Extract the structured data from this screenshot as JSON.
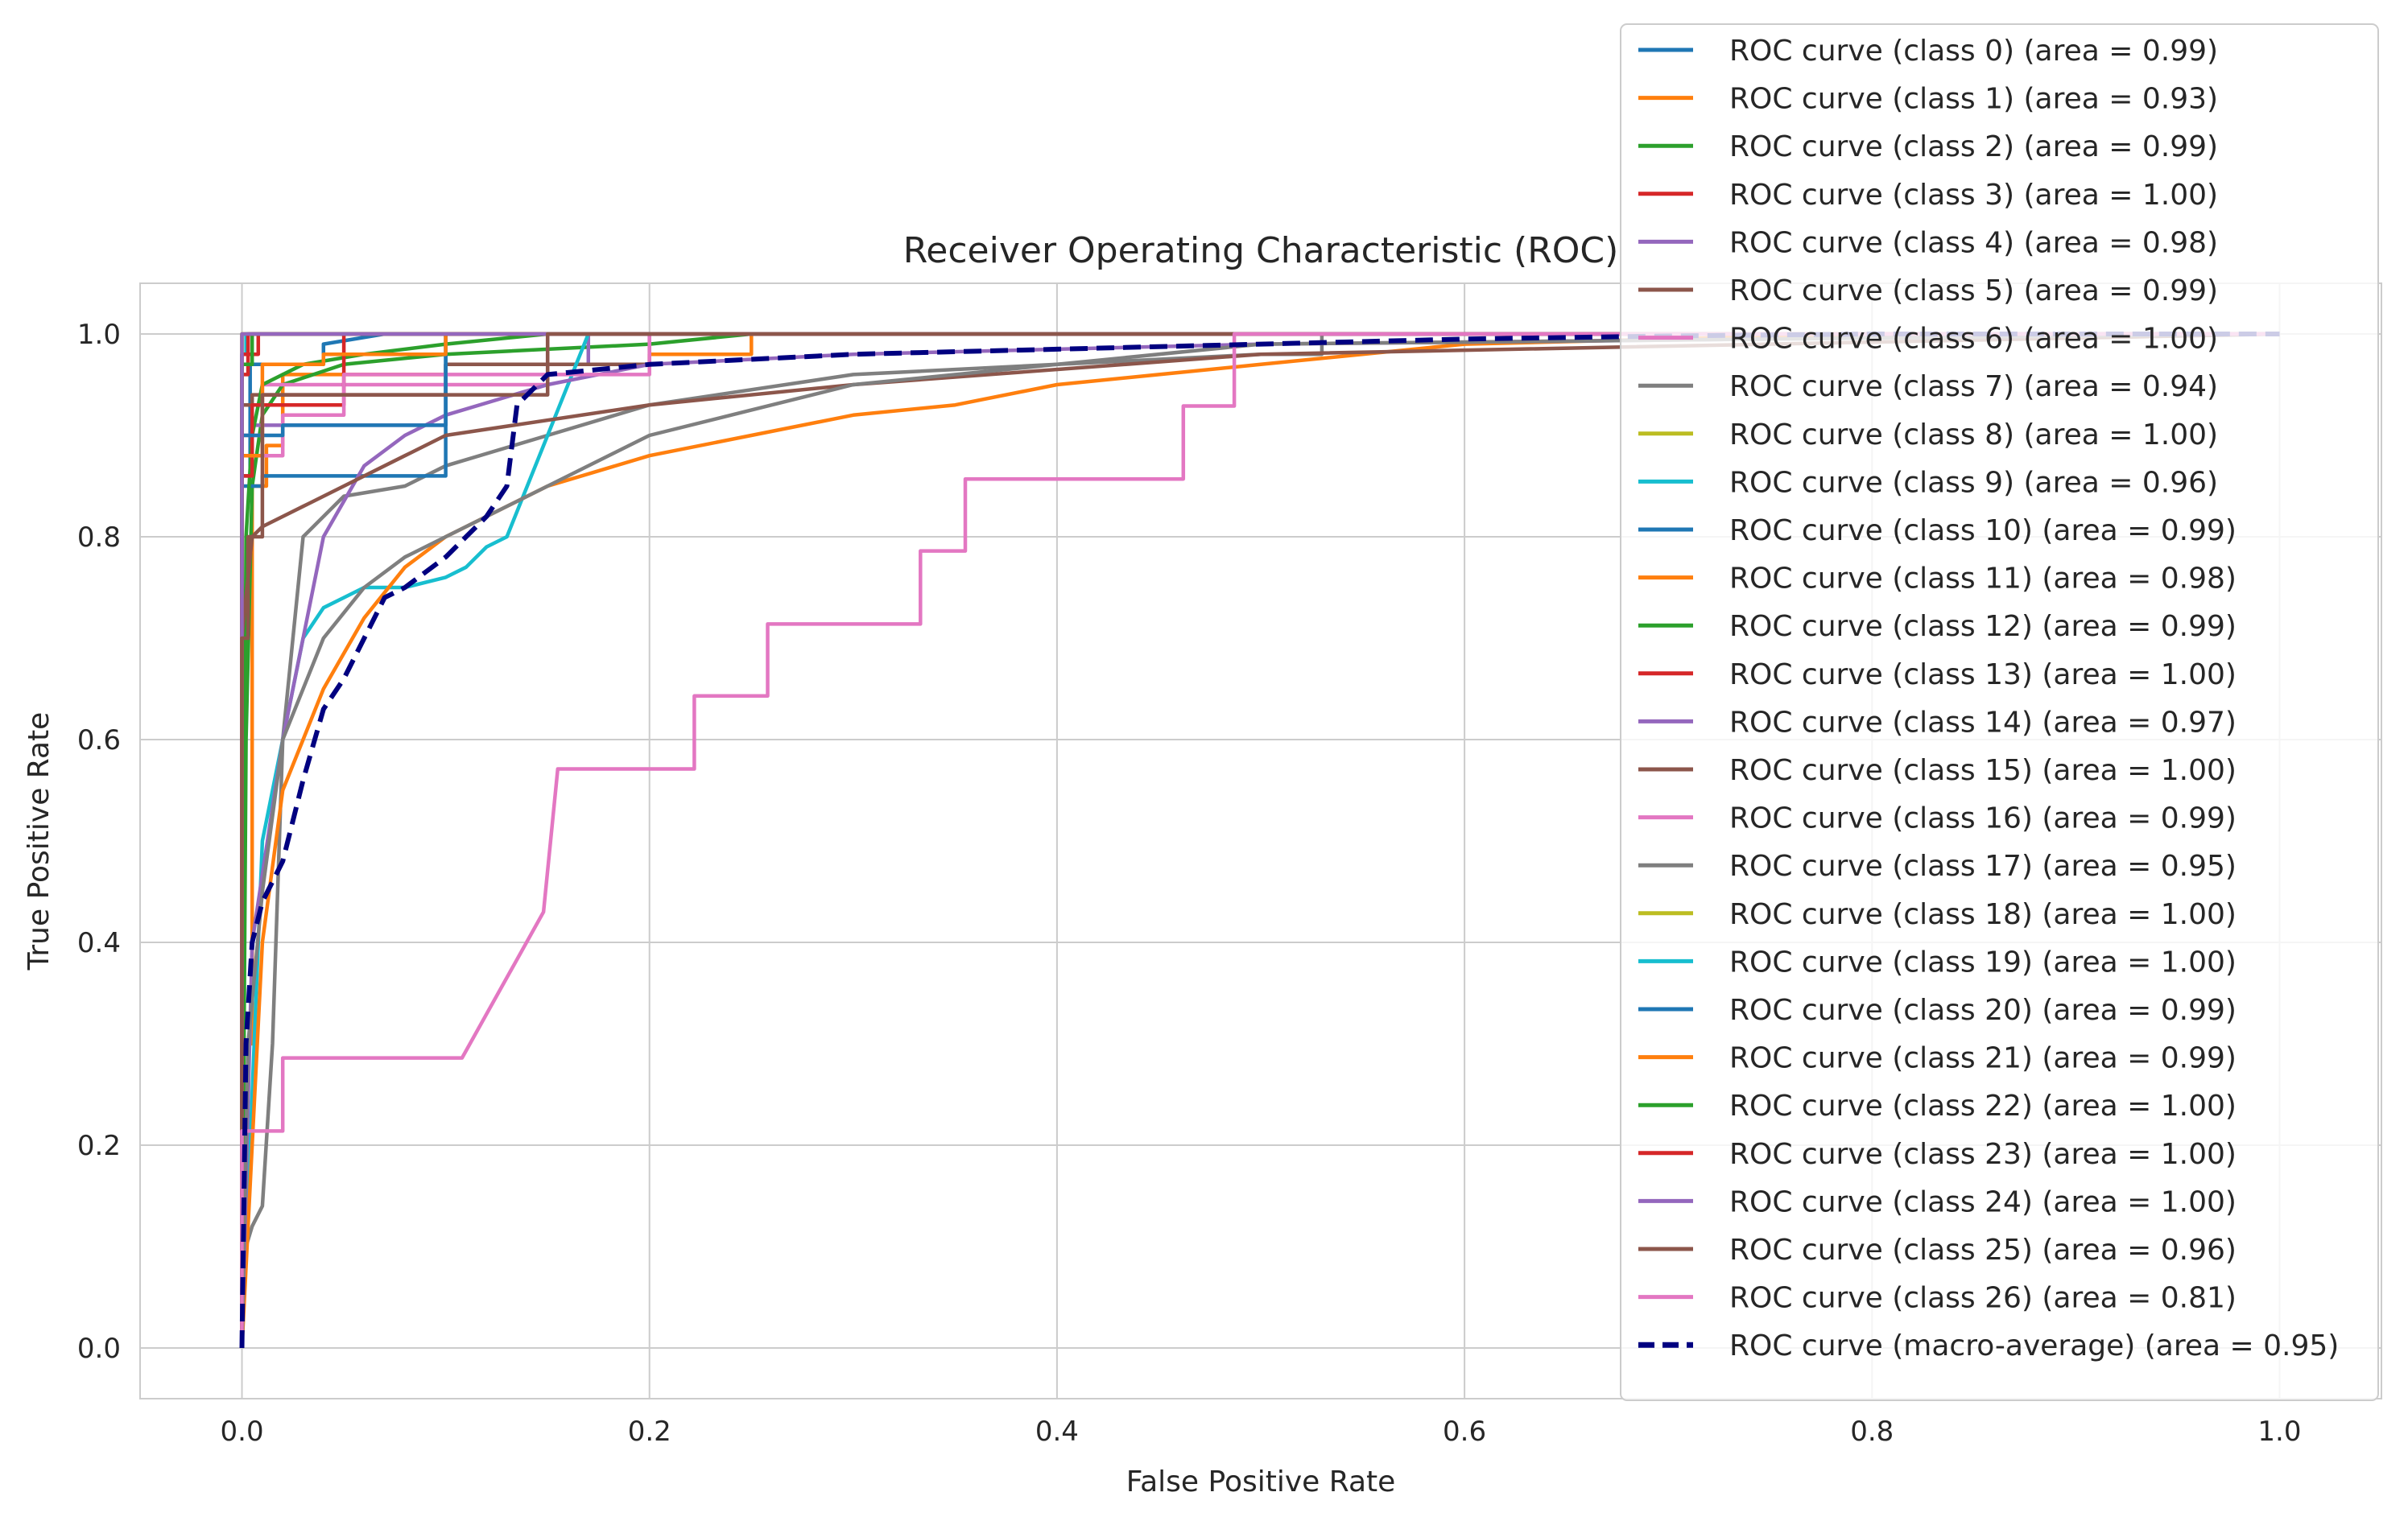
{
  "chart_data": {
    "type": "line",
    "title": "Receiver Operating Characteristic (ROC)",
    "xlabel": "False Positive Rate",
    "ylabel": "True Positive Rate",
    "xlim": [
      -0.05,
      1.05
    ],
    "ylim": [
      -0.05,
      1.05
    ],
    "xticks": [
      "0.0",
      "0.2",
      "0.4",
      "0.6",
      "0.8",
      "1.0"
    ],
    "yticks": [
      "0.0",
      "0.2",
      "0.4",
      "0.6",
      "0.8",
      "1.0"
    ],
    "grid": true,
    "legend_position": "upper-right",
    "series": [
      {
        "name": "ROC curve (class 0) (area = 0.99)",
        "color": "#1f77b4",
        "x": [
          0,
          0,
          0.004,
          0.004,
          0.04,
          0.04,
          0.07,
          1.0
        ],
        "y": [
          0,
          0.86,
          0.86,
          0.97,
          0.97,
          0.99,
          1.0,
          1.0
        ]
      },
      {
        "name": "ROC curve (class 1) (area = 0.93)",
        "color": "#ff7f0e",
        "x": [
          0,
          0,
          0.005,
          0.005,
          0.012,
          0.012,
          0.02,
          0.02,
          0.1,
          0.1,
          0.2,
          0.2,
          0.25,
          0.25,
          1.0
        ],
        "y": [
          0,
          0.3,
          0.3,
          0.85,
          0.85,
          0.89,
          0.89,
          0.96,
          0.96,
          0.97,
          0.97,
          0.98,
          0.98,
          1.0,
          1.0
        ]
      },
      {
        "name": "ROC curve (class 2) (area = 0.99)",
        "color": "#2ca02c",
        "x": [
          0,
          0.002,
          0.005,
          0.01,
          0.02,
          0.05,
          0.1,
          0.2,
          0.25,
          1.0
        ],
        "y": [
          0,
          0.6,
          0.85,
          0.92,
          0.95,
          0.97,
          0.98,
          0.99,
          1.0,
          1.0
        ]
      },
      {
        "name": "ROC curve (class 3) (area = 1.00)",
        "color": "#d62728",
        "x": [
          0,
          0,
          0.003,
          0.003,
          0.008,
          0.008,
          1.0
        ],
        "y": [
          0,
          0.96,
          0.96,
          0.98,
          0.98,
          1.0,
          1.0
        ]
      },
      {
        "name": "ROC curve (class 4) (area = 0.98)",
        "color": "#9467bd",
        "x": [
          0,
          0,
          0.005,
          0.005,
          0.1,
          0.1,
          0.17,
          0.17,
          1.0
        ],
        "y": [
          0,
          0.88,
          0.88,
          0.91,
          0.91,
          0.97,
          0.97,
          1.0,
          1.0
        ]
      },
      {
        "name": "ROC curve (class 5) (area = 0.99)",
        "color": "#8c564b",
        "x": [
          0,
          0,
          0.005,
          0.005,
          0.1,
          0.1,
          0.2,
          0.2,
          1.0
        ],
        "y": [
          0,
          0.93,
          0.93,
          0.94,
          0.94,
          0.97,
          0.97,
          1.0,
          1.0
        ]
      },
      {
        "name": "ROC curve (class 6) (area = 1.00)",
        "color": "#e377c2",
        "x": [
          0,
          0,
          0.01,
          0.01,
          0.15,
          0.15,
          1.0
        ],
        "y": [
          0,
          0.9,
          0.9,
          0.95,
          0.95,
          1.0,
          1.0
        ]
      },
      {
        "name": "ROC curve (class 7) (area = 0.94)",
        "color": "#7f7f7f",
        "x": [
          0,
          0.002,
          0.005,
          0.01,
          0.015,
          0.02,
          0.03,
          0.05,
          0.08,
          0.1,
          0.15,
          0.2,
          0.3,
          0.4,
          0.5,
          0.53,
          0.53,
          1.0
        ],
        "y": [
          0,
          0.1,
          0.12,
          0.14,
          0.3,
          0.6,
          0.8,
          0.84,
          0.85,
          0.87,
          0.9,
          0.93,
          0.96,
          0.97,
          0.98,
          0.98,
          1.0,
          1.0
        ]
      },
      {
        "name": "ROC curve (class 8) (area = 1.00)",
        "color": "#bcbd22",
        "x": [
          0,
          0,
          1.0
        ],
        "y": [
          0,
          1.0,
          1.0
        ]
      },
      {
        "name": "ROC curve (class 9) (area = 0.96)",
        "color": "#17becf",
        "x": [
          0,
          0.01,
          0.02,
          0.03,
          0.04,
          0.05,
          0.06,
          0.08,
          0.1,
          0.11,
          0.12,
          0.13,
          0.14,
          0.15,
          0.16,
          0.17,
          1.0
        ],
        "y": [
          0,
          0.5,
          0.6,
          0.7,
          0.73,
          0.74,
          0.75,
          0.75,
          0.76,
          0.77,
          0.79,
          0.8,
          0.85,
          0.9,
          0.95,
          1.0,
          1.0
        ]
      },
      {
        "name": "ROC curve (class 10) (area = 0.99)",
        "color": "#1f77b4",
        "x": [
          0,
          0,
          0.01,
          0.01,
          0.1,
          0.1,
          1.0
        ],
        "y": [
          0,
          0.85,
          0.85,
          0.86,
          0.86,
          1.0,
          1.0
        ]
      },
      {
        "name": "ROC curve (class 11) (area = 0.98)",
        "color": "#ff7f0e",
        "x": [
          0,
          0.01,
          0.02,
          0.04,
          0.06,
          0.08,
          0.1,
          0.15,
          0.2,
          0.25,
          0.3,
          0.35,
          0.4,
          0.45,
          0.5,
          0.6,
          0.8,
          1.0
        ],
        "y": [
          0,
          0.4,
          0.55,
          0.65,
          0.72,
          0.77,
          0.8,
          0.85,
          0.88,
          0.9,
          0.92,
          0.93,
          0.95,
          0.96,
          0.97,
          0.99,
          1.0,
          1.0
        ]
      },
      {
        "name": "ROC curve (class 12) (area = 0.99)",
        "color": "#2ca02c",
        "x": [
          0,
          0.002,
          0.005,
          0.01,
          0.03,
          0.06,
          0.1,
          0.15,
          1.0
        ],
        "y": [
          0,
          0.8,
          0.9,
          0.95,
          0.97,
          0.98,
          0.99,
          1.0,
          1.0
        ]
      },
      {
        "name": "ROC curve (class 13) (area = 1.00)",
        "color": "#d62728",
        "x": [
          0,
          0,
          0.005,
          0.005,
          0.05,
          0.05,
          1.0
        ],
        "y": [
          0,
          0.86,
          0.86,
          0.93,
          0.93,
          1.0,
          1.0
        ]
      },
      {
        "name": "ROC curve (class 14) (area = 0.97)",
        "color": "#9467bd",
        "x": [
          0,
          0.005,
          0.02,
          0.04,
          0.06,
          0.08,
          0.1,
          0.15,
          0.2,
          0.3,
          0.5,
          1.0
        ],
        "y": [
          0,
          0.4,
          0.6,
          0.8,
          0.87,
          0.9,
          0.92,
          0.95,
          0.97,
          0.98,
          0.99,
          1.0
        ]
      },
      {
        "name": "ROC curve (class 15) (area = 1.00)",
        "color": "#8c564b",
        "x": [
          0,
          0,
          0.005,
          0.01,
          0.03,
          0.05,
          0.08,
          0.1,
          0.2,
          0.3,
          0.5,
          1.0
        ],
        "y": [
          0,
          0.7,
          0.8,
          0.81,
          0.83,
          0.85,
          0.88,
          0.9,
          0.93,
          0.95,
          0.98,
          1.0
        ]
      },
      {
        "name": "ROC curve (class 16) (area = 0.99)",
        "color": "#e377c2",
        "x": [
          0,
          0,
          0.02,
          0.02,
          0.05,
          0.05,
          0.2,
          0.2,
          1.0
        ],
        "y": [
          0,
          0.88,
          0.88,
          0.92,
          0.92,
          0.96,
          0.96,
          1.0,
          1.0
        ]
      },
      {
        "name": "ROC curve (class 17) (area = 0.95)",
        "color": "#7f7f7f",
        "x": [
          0,
          0.003,
          0.01,
          0.02,
          0.04,
          0.06,
          0.08,
          0.1,
          0.15,
          0.2,
          0.3,
          0.4,
          0.5,
          1.0
        ],
        "y": [
          0,
          0.3,
          0.45,
          0.6,
          0.7,
          0.75,
          0.78,
          0.8,
          0.85,
          0.9,
          0.95,
          0.97,
          0.99,
          1.0
        ]
      },
      {
        "name": "ROC curve (class 18) (area = 1.00)",
        "color": "#bcbd22",
        "x": [
          0,
          0,
          1.0
        ],
        "y": [
          0,
          1.0,
          1.0
        ]
      },
      {
        "name": "ROC curve (class 19) (area = 1.00)",
        "color": "#17becf",
        "x": [
          0,
          0,
          0.002,
          0.002,
          1.0
        ],
        "y": [
          0,
          0.98,
          0.98,
          1.0,
          1.0
        ]
      },
      {
        "name": "ROC curve (class 20) (area = 0.99)",
        "color": "#1f77b4",
        "x": [
          0,
          0,
          0.02,
          0.02,
          0.1,
          0.1,
          1.0
        ],
        "y": [
          0,
          0.9,
          0.9,
          0.91,
          0.91,
          1.0,
          1.0
        ]
      },
      {
        "name": "ROC curve (class 21) (area = 0.99)",
        "color": "#ff7f0e",
        "x": [
          0,
          0,
          0.01,
          0.01,
          0.04,
          0.04,
          0.1,
          0.1,
          1.0
        ],
        "y": [
          0,
          0.88,
          0.88,
          0.97,
          0.97,
          0.98,
          0.98,
          1.0,
          1.0
        ]
      },
      {
        "name": "ROC curve (class 22) (area = 1.00)",
        "color": "#2ca02c",
        "x": [
          0,
          0,
          0.005,
          0.005,
          1.0
        ],
        "y": [
          0,
          0.97,
          0.97,
          1.0,
          1.0
        ]
      },
      {
        "name": "ROC curve (class 23) (area = 1.00)",
        "color": "#d62728",
        "x": [
          0,
          0,
          0.003,
          0.003,
          1.0
        ],
        "y": [
          0,
          0.98,
          0.98,
          1.0,
          1.0
        ]
      },
      {
        "name": "ROC curve (class 24) (area = 1.00)",
        "color": "#9467bd",
        "x": [
          0,
          0,
          1.0
        ],
        "y": [
          0,
          1.0,
          1.0
        ]
      },
      {
        "name": "ROC curve (class 25) (area = 0.96)",
        "color": "#8c564b",
        "x": [
          0,
          0,
          0.003,
          0.003,
          0.01,
          0.01,
          0.15,
          0.15,
          1.0
        ],
        "y": [
          0,
          0.7,
          0.7,
          0.8,
          0.8,
          0.94,
          0.94,
          1.0,
          1.0
        ]
      },
      {
        "name": "ROC curve (class 26) (area = 0.81)",
        "color": "#e377c2",
        "x": [
          0,
          0,
          0.02,
          0.02,
          0.108,
          0.148,
          0.155,
          0.222,
          0.222,
          0.258,
          0.258,
          0.333,
          0.333,
          0.355,
          0.355,
          0.462,
          0.462,
          0.487,
          0.487,
          0.495,
          1.0
        ],
        "y": [
          0,
          0.214,
          0.214,
          0.286,
          0.286,
          0.43,
          0.571,
          0.571,
          0.643,
          0.643,
          0.714,
          0.714,
          0.786,
          0.786,
          0.857,
          0.857,
          0.929,
          0.929,
          1.0,
          1.0,
          1.0
        ]
      },
      {
        "name": "ROC curve (macro-average) (area = 0.95)",
        "color": "#000080",
        "dashed": true,
        "x": [
          0,
          0.002,
          0.005,
          0.01,
          0.02,
          0.03,
          0.04,
          0.05,
          0.06,
          0.07,
          0.08,
          0.1,
          0.11,
          0.12,
          0.13,
          0.135,
          0.14,
          0.15,
          0.2,
          0.3,
          0.4,
          0.5,
          0.6,
          0.7,
          0.8,
          1.0
        ],
        "y": [
          0,
          0.3,
          0.4,
          0.44,
          0.48,
          0.56,
          0.63,
          0.66,
          0.7,
          0.74,
          0.75,
          0.78,
          0.8,
          0.82,
          0.85,
          0.93,
          0.94,
          0.96,
          0.97,
          0.98,
          0.985,
          0.99,
          0.995,
          0.998,
          1.0,
          1.0
        ]
      }
    ]
  }
}
